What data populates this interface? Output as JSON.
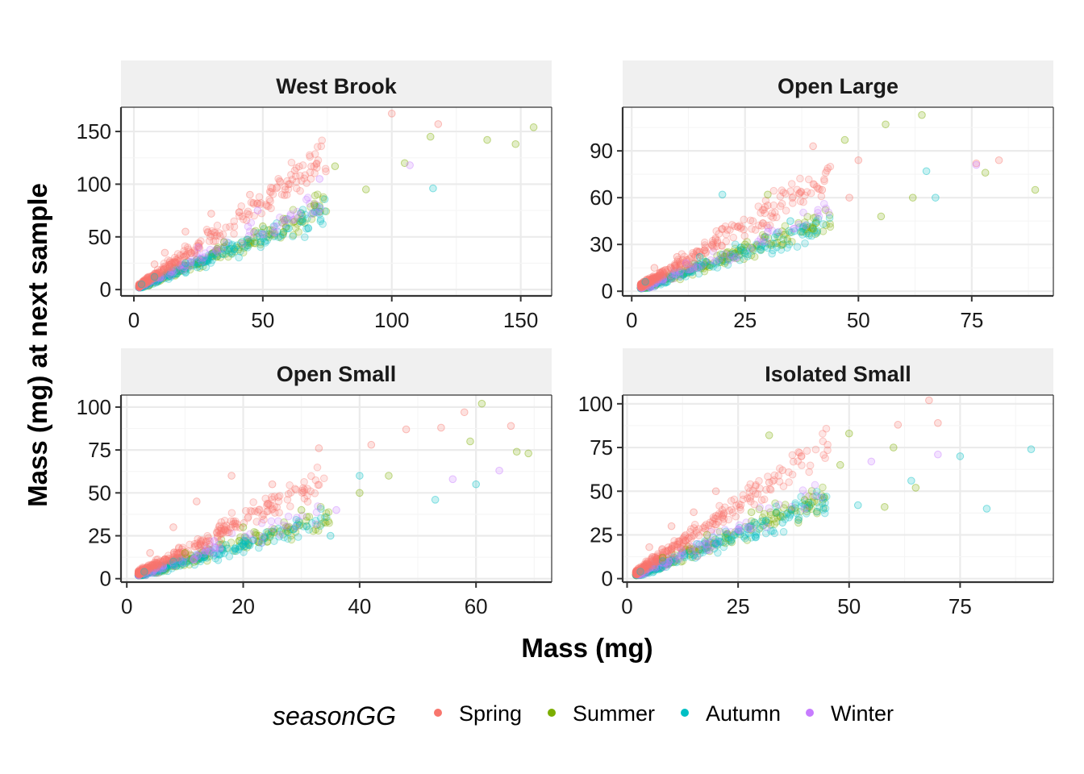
{
  "chart_data": {
    "type": "scatter",
    "xlabel": "Mass (mg)",
    "ylabel": "Mass (mg) at next sample",
    "legend": {
      "title": "seasonGG",
      "position": "bottom",
      "entries": [
        {
          "name": "Spring",
          "color": "#F8766D"
        },
        {
          "name": "Summer",
          "color": "#7CAE00"
        },
        {
          "name": "Autumn",
          "color": "#00BFC4"
        },
        {
          "name": "Winter",
          "color": "#C77CFF"
        }
      ]
    },
    "grid": true,
    "panels": [
      {
        "title": "West Brook",
        "xlim": [
          -5,
          162
        ],
        "ylim": [
          -6,
          173
        ],
        "xticks": [
          0,
          50,
          100,
          150
        ],
        "yticks": [
          0,
          50,
          100,
          150
        ],
        "sample_points": [
          {
            "season": "Spring",
            "x": 100,
            "y": 167
          },
          {
            "season": "Spring",
            "x": 118,
            "y": 157
          },
          {
            "season": "Spring",
            "x": 60,
            "y": 100
          },
          {
            "season": "Spring",
            "x": 45,
            "y": 90
          },
          {
            "season": "Spring",
            "x": 30,
            "y": 72
          },
          {
            "season": "Spring",
            "x": 20,
            "y": 55
          },
          {
            "season": "Spring",
            "x": 12,
            "y": 35
          },
          {
            "season": "Spring",
            "x": 8,
            "y": 24
          },
          {
            "season": "Summer",
            "x": 155,
            "y": 154
          },
          {
            "season": "Summer",
            "x": 137,
            "y": 142
          },
          {
            "season": "Summer",
            "x": 148,
            "y": 138
          },
          {
            "season": "Summer",
            "x": 115,
            "y": 145
          },
          {
            "season": "Summer",
            "x": 105,
            "y": 120
          },
          {
            "season": "Summer",
            "x": 78,
            "y": 117
          },
          {
            "season": "Summer",
            "x": 90,
            "y": 95
          },
          {
            "season": "Summer",
            "x": 70,
            "y": 80
          },
          {
            "season": "Summer",
            "x": 50,
            "y": 60
          },
          {
            "season": "Summer",
            "x": 35,
            "y": 45
          },
          {
            "season": "Autumn",
            "x": 116,
            "y": 96
          },
          {
            "season": "Autumn",
            "x": 60,
            "y": 58
          },
          {
            "season": "Autumn",
            "x": 40,
            "y": 42
          },
          {
            "season": "Autumn",
            "x": 20,
            "y": 25
          },
          {
            "season": "Autumn",
            "x": 8,
            "y": 12
          },
          {
            "season": "Autumn",
            "x": 3,
            "y": 5
          },
          {
            "season": "Winter",
            "x": 107,
            "y": 118
          },
          {
            "season": "Winter",
            "x": 72,
            "y": 105
          },
          {
            "season": "Winter",
            "x": 48,
            "y": 75
          },
          {
            "season": "Winter",
            "x": 25,
            "y": 40
          }
        ]
      },
      {
        "title": "Open Large",
        "xlim": [
          -2,
          93
        ],
        "ylim": [
          -3,
          118
        ],
        "xticks": [
          0,
          25,
          50,
          75
        ],
        "yticks": [
          0,
          30,
          60,
          90
        ],
        "sample_points": [
          {
            "season": "Spring",
            "x": 40,
            "y": 93
          },
          {
            "season": "Spring",
            "x": 81,
            "y": 84
          },
          {
            "season": "Spring",
            "x": 76,
            "y": 82
          },
          {
            "season": "Spring",
            "x": 50,
            "y": 84
          },
          {
            "season": "Spring",
            "x": 42,
            "y": 65
          },
          {
            "season": "Spring",
            "x": 48,
            "y": 60
          },
          {
            "season": "Spring",
            "x": 30,
            "y": 55
          },
          {
            "season": "Spring",
            "x": 20,
            "y": 40
          },
          {
            "season": "Spring",
            "x": 10,
            "y": 22
          },
          {
            "season": "Spring",
            "x": 5,
            "y": 15
          },
          {
            "season": "Summer",
            "x": 64,
            "y": 113
          },
          {
            "season": "Summer",
            "x": 56,
            "y": 107
          },
          {
            "season": "Summer",
            "x": 47,
            "y": 97
          },
          {
            "season": "Summer",
            "x": 78,
            "y": 76
          },
          {
            "season": "Summer",
            "x": 89,
            "y": 65
          },
          {
            "season": "Summer",
            "x": 62,
            "y": 60
          },
          {
            "season": "Summer",
            "x": 55,
            "y": 48
          },
          {
            "season": "Summer",
            "x": 40,
            "y": 40
          },
          {
            "season": "Summer",
            "x": 30,
            "y": 62
          },
          {
            "season": "Summer",
            "x": 25,
            "y": 30
          },
          {
            "season": "Autumn",
            "x": 65,
            "y": 77
          },
          {
            "season": "Autumn",
            "x": 67,
            "y": 60
          },
          {
            "season": "Autumn",
            "x": 20,
            "y": 62
          },
          {
            "season": "Autumn",
            "x": 35,
            "y": 45
          },
          {
            "season": "Autumn",
            "x": 15,
            "y": 22
          },
          {
            "season": "Autumn",
            "x": 3,
            "y": 6
          },
          {
            "season": "Winter",
            "x": 76,
            "y": 81
          },
          {
            "season": "Winter",
            "x": 30,
            "y": 38
          },
          {
            "season": "Winter",
            "x": 12,
            "y": 18
          }
        ]
      },
      {
        "title": "Open Small",
        "xlim": [
          -1,
          73
        ],
        "ylim": [
          -2,
          107
        ],
        "xticks": [
          0,
          20,
          40,
          60
        ],
        "yticks": [
          0,
          25,
          50,
          75,
          100
        ],
        "sample_points": [
          {
            "season": "Spring",
            "x": 58,
            "y": 97
          },
          {
            "season": "Spring",
            "x": 66,
            "y": 89
          },
          {
            "season": "Spring",
            "x": 54,
            "y": 88
          },
          {
            "season": "Spring",
            "x": 48,
            "y": 87
          },
          {
            "season": "Spring",
            "x": 42,
            "y": 78
          },
          {
            "season": "Spring",
            "x": 33,
            "y": 76
          },
          {
            "season": "Spring",
            "x": 25,
            "y": 55
          },
          {
            "season": "Spring",
            "x": 18,
            "y": 60
          },
          {
            "season": "Spring",
            "x": 12,
            "y": 45
          },
          {
            "season": "Spring",
            "x": 8,
            "y": 30
          },
          {
            "season": "Spring",
            "x": 4,
            "y": 15
          },
          {
            "season": "Summer",
            "x": 61,
            "y": 102
          },
          {
            "season": "Summer",
            "x": 59,
            "y": 80
          },
          {
            "season": "Summer",
            "x": 69,
            "y": 73
          },
          {
            "season": "Summer",
            "x": 67,
            "y": 74
          },
          {
            "season": "Summer",
            "x": 45,
            "y": 60
          },
          {
            "season": "Summer",
            "x": 40,
            "y": 50
          },
          {
            "season": "Summer",
            "x": 30,
            "y": 40
          },
          {
            "season": "Summer",
            "x": 20,
            "y": 30
          },
          {
            "season": "Summer",
            "x": 10,
            "y": 15
          },
          {
            "season": "Autumn",
            "x": 60,
            "y": 55
          },
          {
            "season": "Autumn",
            "x": 53,
            "y": 46
          },
          {
            "season": "Autumn",
            "x": 40,
            "y": 60
          },
          {
            "season": "Autumn",
            "x": 35,
            "y": 25
          },
          {
            "season": "Autumn",
            "x": 20,
            "y": 20
          },
          {
            "season": "Autumn",
            "x": 8,
            "y": 10
          },
          {
            "season": "Autumn",
            "x": 3,
            "y": 4
          },
          {
            "season": "Winter",
            "x": 64,
            "y": 63
          },
          {
            "season": "Winter",
            "x": 56,
            "y": 58
          },
          {
            "season": "Winter",
            "x": 36,
            "y": 40
          },
          {
            "season": "Winter",
            "x": 15,
            "y": 22
          }
        ]
      },
      {
        "title": "Isolated Small",
        "xlim": [
          -1,
          96
        ],
        "ylim": [
          -2,
          105
        ],
        "xticks": [
          0,
          25,
          50,
          75
        ],
        "yticks": [
          0,
          25,
          50,
          75,
          100
        ],
        "sample_points": [
          {
            "season": "Spring",
            "x": 68,
            "y": 102
          },
          {
            "season": "Spring",
            "x": 70,
            "y": 89
          },
          {
            "season": "Spring",
            "x": 61,
            "y": 88
          },
          {
            "season": "Spring",
            "x": 35,
            "y": 62
          },
          {
            "season": "Spring",
            "x": 32,
            "y": 55
          },
          {
            "season": "Spring",
            "x": 20,
            "y": 50
          },
          {
            "season": "Spring",
            "x": 15,
            "y": 38
          },
          {
            "season": "Spring",
            "x": 10,
            "y": 30
          },
          {
            "season": "Spring",
            "x": 5,
            "y": 18
          },
          {
            "season": "Summer",
            "x": 32,
            "y": 82
          },
          {
            "season": "Summer",
            "x": 50,
            "y": 83
          },
          {
            "season": "Summer",
            "x": 48,
            "y": 65
          },
          {
            "season": "Summer",
            "x": 60,
            "y": 75
          },
          {
            "season": "Summer",
            "x": 65,
            "y": 52
          },
          {
            "season": "Summer",
            "x": 58,
            "y": 41
          },
          {
            "season": "Summer",
            "x": 40,
            "y": 45
          },
          {
            "season": "Summer",
            "x": 28,
            "y": 38
          },
          {
            "season": "Summer",
            "x": 18,
            "y": 25
          },
          {
            "season": "Summer",
            "x": 8,
            "y": 12
          },
          {
            "season": "Autumn",
            "x": 91,
            "y": 74
          },
          {
            "season": "Autumn",
            "x": 75,
            "y": 70
          },
          {
            "season": "Autumn",
            "x": 81,
            "y": 40
          },
          {
            "season": "Autumn",
            "x": 64,
            "y": 56
          },
          {
            "season": "Autumn",
            "x": 52,
            "y": 42
          },
          {
            "season": "Autumn",
            "x": 35,
            "y": 32
          },
          {
            "season": "Autumn",
            "x": 20,
            "y": 20
          },
          {
            "season": "Autumn",
            "x": 8,
            "y": 10
          },
          {
            "season": "Autumn",
            "x": 3,
            "y": 4
          },
          {
            "season": "Winter",
            "x": 55,
            "y": 67
          },
          {
            "season": "Winter",
            "x": 70,
            "y": 71
          },
          {
            "season": "Winter",
            "x": 40,
            "y": 40
          },
          {
            "season": "Winter",
            "x": 25,
            "y": 28
          }
        ]
      }
    ]
  }
}
